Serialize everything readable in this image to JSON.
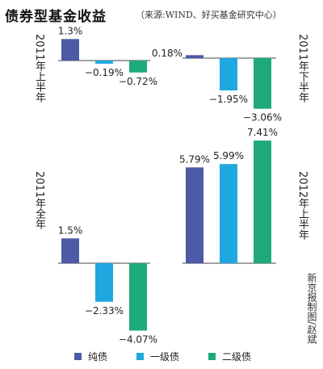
{
  "header": {
    "title": "债券型基金收益",
    "source": "（来源:WIND、好买基金研究中心）"
  },
  "credit": "新京报制图/赵斌",
  "colors": {
    "pure": "#4d5aa6",
    "first": "#1fa7df",
    "second": "#1eaa7b"
  },
  "chart_data": [
    {
      "type": "bar",
      "title": "2011年上半年",
      "series": [
        {
          "name": "纯债",
          "values": [
            1.3
          ],
          "labels": [
            "1.3%"
          ]
        },
        {
          "name": "一级债",
          "values": [
            -0.19
          ],
          "labels": [
            "−0.19%"
          ]
        },
        {
          "name": "二级债",
          "values": [
            -0.72
          ],
          "labels": [
            "−0.72%"
          ]
        }
      ]
    },
    {
      "type": "bar",
      "title": "2011年下半年",
      "series": [
        {
          "name": "纯债",
          "values": [
            0.18
          ],
          "labels": [
            "0.18%"
          ]
        },
        {
          "name": "一级债",
          "values": [
            -1.95
          ],
          "labels": [
            "−1.95%"
          ]
        },
        {
          "name": "二级债",
          "values": [
            -3.06
          ],
          "labels": [
            "−3.06%"
          ]
        }
      ]
    },
    {
      "type": "bar",
      "title": "2011年全年",
      "series": [
        {
          "name": "纯债",
          "values": [
            1.5
          ],
          "labels": [
            "1.5%"
          ]
        },
        {
          "name": "一级债",
          "values": [
            -2.33
          ],
          "labels": [
            "−2.33%"
          ]
        },
        {
          "name": "二级债",
          "values": [
            -4.07
          ],
          "labels": [
            "−4.07%"
          ]
        }
      ]
    },
    {
      "type": "bar",
      "title": "2012年上半年",
      "series": [
        {
          "name": "纯债",
          "values": [
            5.79
          ],
          "labels": [
            "5.79%"
          ]
        },
        {
          "name": "一级债",
          "values": [
            5.99
          ],
          "labels": [
            "5.99%"
          ]
        },
        {
          "name": "二级债",
          "values": [
            7.41
          ],
          "labels": [
            "7.41%"
          ]
        }
      ]
    }
  ],
  "legend": [
    {
      "name": "纯债",
      "color": "#4d5aa6"
    },
    {
      "name": "一级债",
      "color": "#1fa7df"
    },
    {
      "name": "二级债",
      "color": "#1eaa7b"
    }
  ]
}
